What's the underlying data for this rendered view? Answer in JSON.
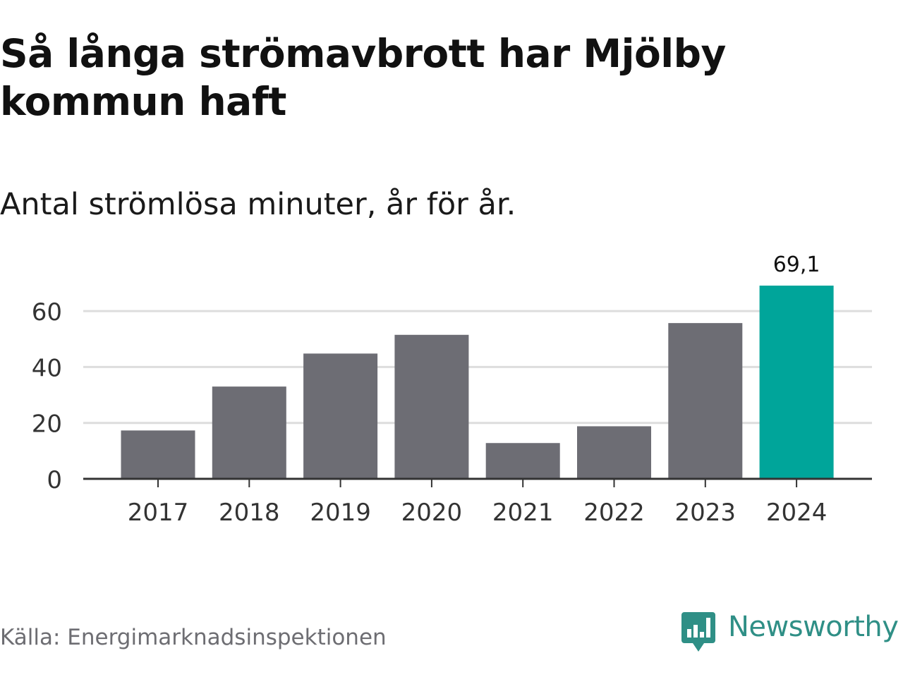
{
  "title": "Så långa strömavbrott har Mjölby kommun haft",
  "subtitle": "Antal strömlösa minuter, år för år.",
  "source": "Källa: Energimarknadsinspektionen",
  "brand": {
    "name": "Newsworthy",
    "color": "#2f8f86",
    "icon": "bar-chart-speech-bubble-icon"
  },
  "colors": {
    "bar": "#6d6d74",
    "highlight": "#00a59a",
    "grid": "#dddddd",
    "axis": "#333333"
  },
  "chart_data": {
    "type": "bar",
    "title": "Så långa strömavbrott har Mjölby kommun haft",
    "subtitle": "Antal strömlösa minuter, år för år.",
    "xlabel": "",
    "ylabel": "",
    "categories": [
      "2017",
      "2018",
      "2019",
      "2020",
      "2021",
      "2022",
      "2023",
      "2024"
    ],
    "values": [
      17.3,
      33.0,
      44.8,
      51.5,
      12.8,
      18.8,
      55.7,
      69.1
    ],
    "highlight_index": 7,
    "data_labels": [
      {
        "index": 7,
        "text": "69,1"
      }
    ],
    "ylim": [
      0,
      69.1
    ],
    "yticks": [
      0,
      20,
      40,
      60
    ],
    "grid": true,
    "legend": "none"
  }
}
